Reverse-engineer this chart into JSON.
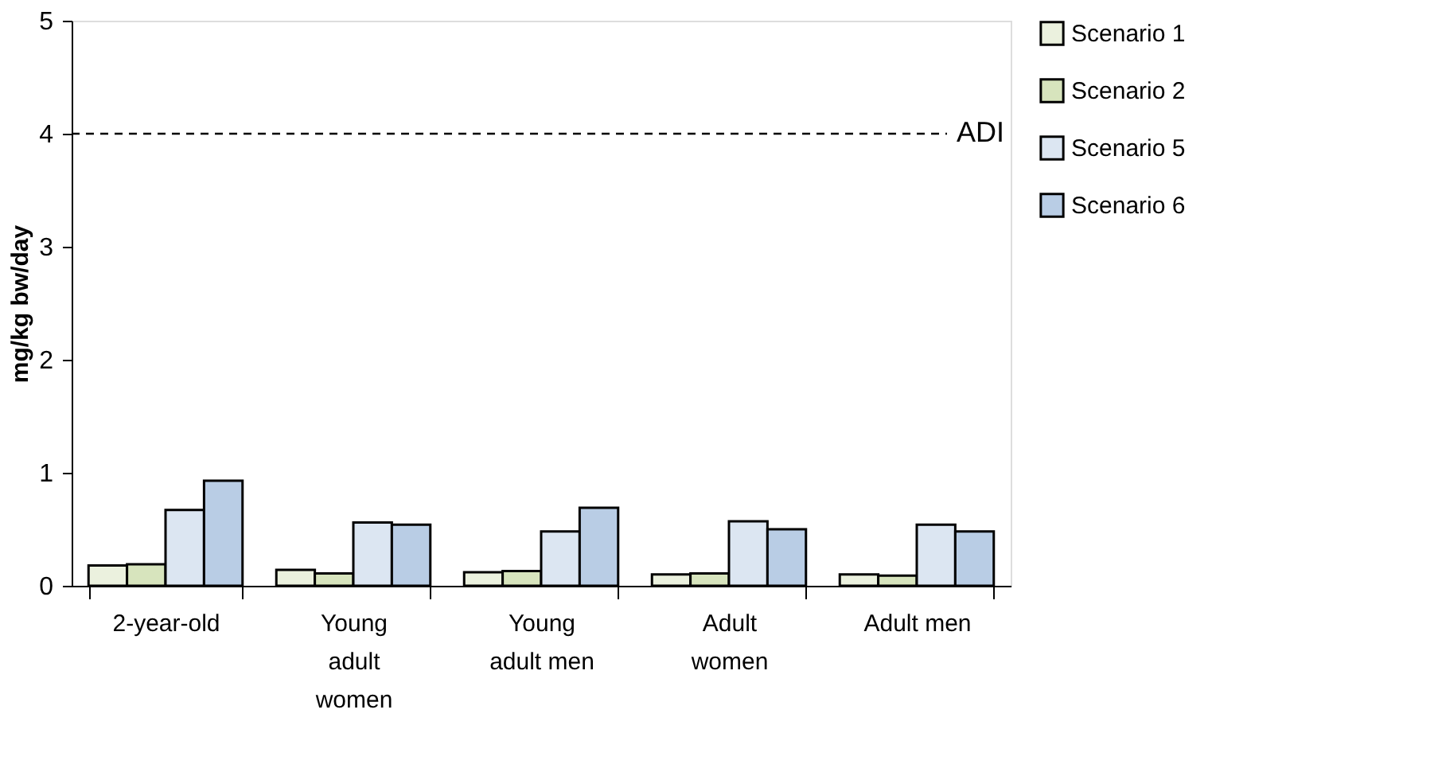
{
  "chart_data": {
    "type": "bar",
    "ylabel": "mg/kg bw/day",
    "categories": [
      "2-year-old",
      "Young adult women",
      "Young adult men",
      "Adult women",
      "Adult men"
    ],
    "series": [
      {
        "name": "Scenario 1",
        "color": "#ebf1de",
        "values": [
          0.18,
          0.14,
          0.12,
          0.1,
          0.1
        ]
      },
      {
        "name": "Scenario 2",
        "color": "#d7e4bd",
        "values": [
          0.19,
          0.11,
          0.13,
          0.11,
          0.09
        ]
      },
      {
        "name": "Scenario 5",
        "color": "#dce6f2",
        "values": [
          0.67,
          0.56,
          0.48,
          0.57,
          0.54
        ]
      },
      {
        "name": "Scenario 6",
        "color": "#b9cde5",
        "values": [
          0.93,
          0.54,
          0.69,
          0.5,
          0.48
        ]
      }
    ],
    "ylim": [
      0,
      5
    ],
    "yticks": [
      0,
      1,
      2,
      3,
      4,
      5
    ],
    "grid": false,
    "legend": "right",
    "ref_lines": [
      {
        "axis": "y",
        "value": 4,
        "label": "ADI",
        "line_style": "dashed",
        "color": "#000000"
      }
    ]
  }
}
